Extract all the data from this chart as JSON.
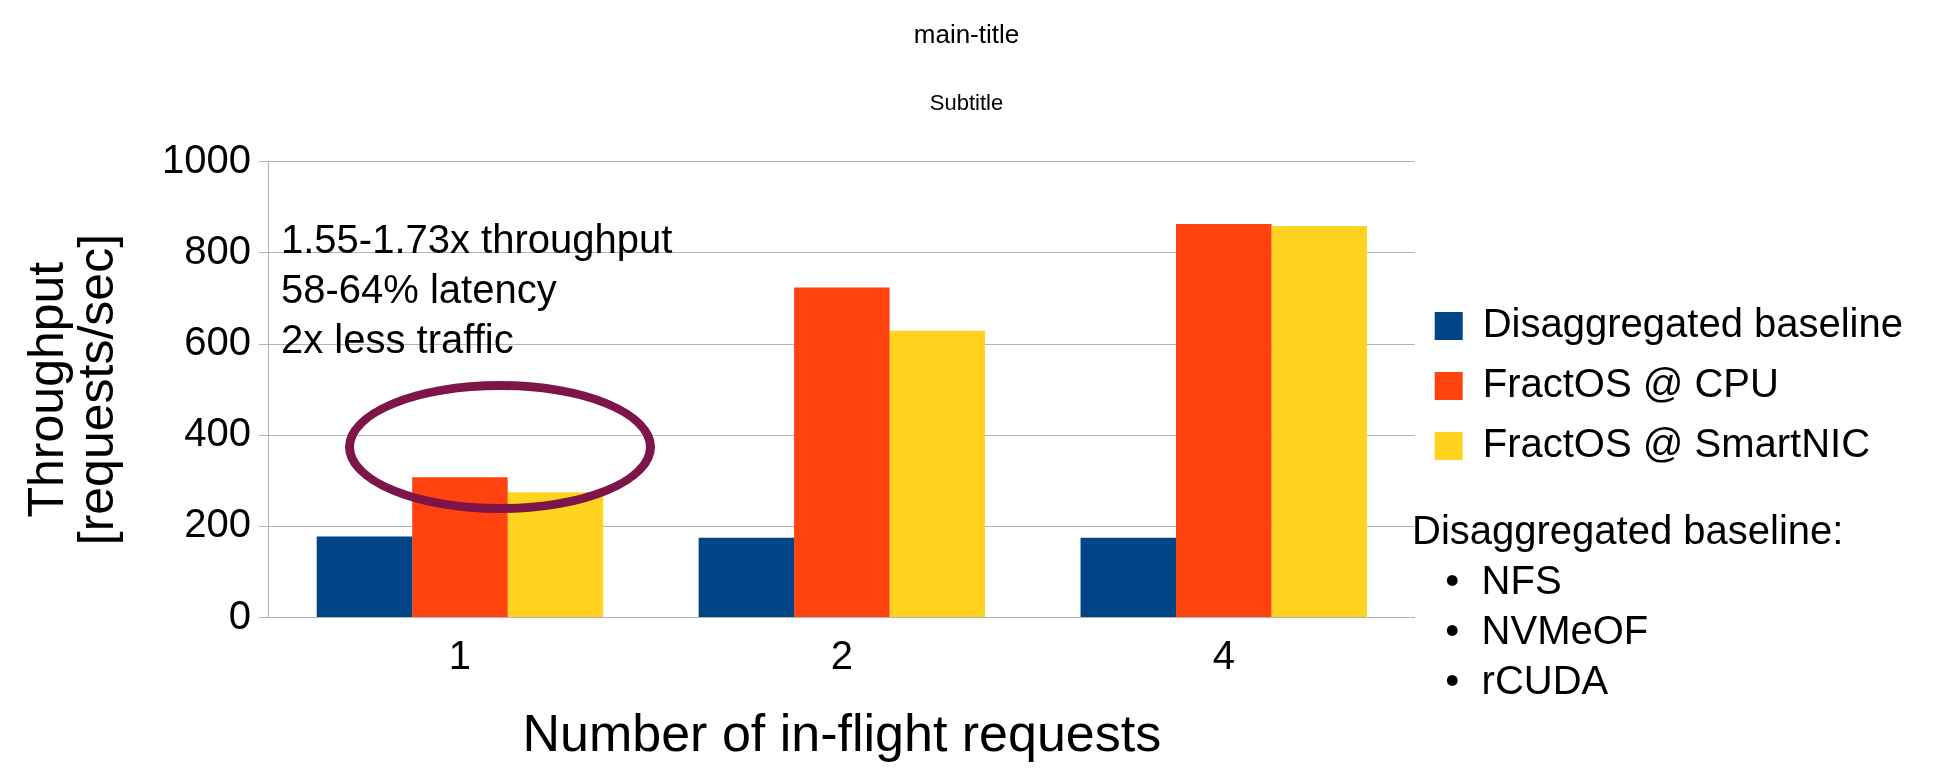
{
  "chart_data": {
    "type": "bar",
    "title": "main-title",
    "subtitle": "Subtitle",
    "xlabel": "Number of in-flight requests",
    "ylabel": "Throughput\n[requests/sec]",
    "categories": [
      "1",
      "2",
      "4"
    ],
    "series": [
      {
        "name": "Disaggregated baseline",
        "color": "#004586",
        "values": [
          178,
          175,
          175
        ]
      },
      {
        "name": "FractOS @ CPU",
        "color": "#ff420e",
        "values": [
          308,
          724,
          863
        ]
      },
      {
        "name": "FractOS @ SmartNIC",
        "color": "#ffd320",
        "values": [
          275,
          629,
          859
        ]
      }
    ],
    "ylim": [
      0,
      1000
    ],
    "yticks": [
      0,
      200,
      400,
      600,
      800,
      1000
    ],
    "grid": "y",
    "legend": "right",
    "annotations": [
      "1.55-1.73x throughput\n58-64% latency\n2x less traffic",
      "Disaggregated baseline:\n   •  NFS\n   •  NVMeOF\n   •  rCUDA"
    ]
  }
}
